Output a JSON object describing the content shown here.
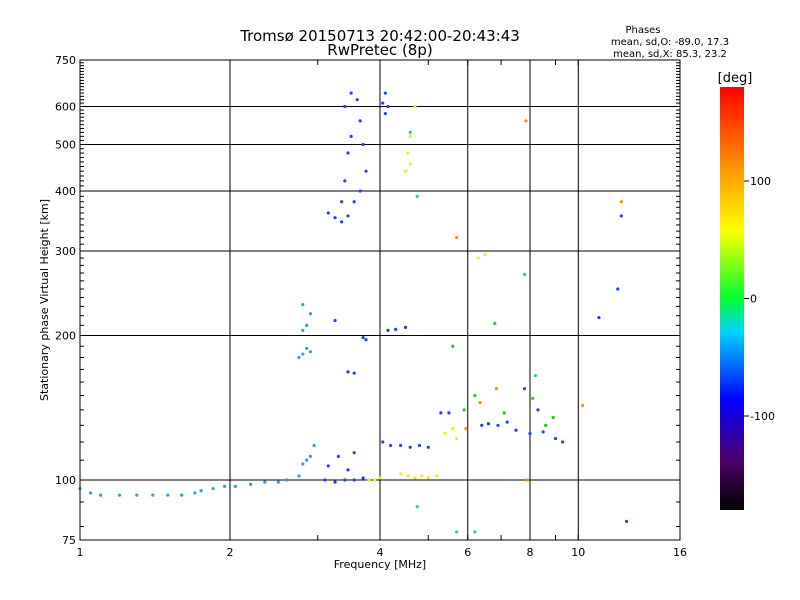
{
  "chart_data": {
    "type": "scatter",
    "title": "Tromsø 20150713 20:42:00-20:43:43",
    "subtitle": "RwPretec (8p)",
    "legend": {
      "title": "Phases",
      "lines": [
        "mean, sd,O: -89.0, 17.3",
        "mean, sd,X: 85.3, 23.2"
      ],
      "placement": "top-right"
    },
    "xlabel": "Frequency [MHz]",
    "ylabel": "Stationary phase Virtual Height [km]",
    "x_scale": "log",
    "y_scale": "log",
    "xlim": [
      1,
      16
    ],
    "ylim": [
      75,
      750
    ],
    "x_ticks": [
      1,
      2,
      4,
      6,
      8,
      10,
      16
    ],
    "y_ticks": [
      75,
      100,
      200,
      300,
      400,
      500,
      600,
      750
    ],
    "grid": true,
    "colorbar": {
      "label": "[deg]",
      "range": [
        -180,
        180
      ],
      "ticks": [
        100,
        0,
        -100
      ]
    },
    "series": [
      {
        "color": "#2aa0dc",
        "points": [
          [
            1.0,
            96
          ],
          [
            1.05,
            94
          ],
          [
            1.1,
            93
          ],
          [
            1.2,
            93
          ],
          [
            1.3,
            93
          ],
          [
            1.4,
            93
          ],
          [
            1.5,
            93
          ],
          [
            1.6,
            93
          ],
          [
            1.7,
            94
          ],
          [
            1.75,
            95
          ],
          [
            1.85,
            96
          ],
          [
            1.95,
            97
          ],
          [
            2.05,
            97
          ],
          [
            2.2,
            98
          ],
          [
            2.35,
            99
          ],
          [
            2.5,
            99
          ],
          [
            2.6,
            100
          ],
          [
            2.75,
            102
          ],
          [
            2.8,
            108
          ],
          [
            2.85,
            110
          ],
          [
            2.9,
            112
          ],
          [
            2.95,
            118
          ],
          [
            2.8,
            183
          ],
          [
            2.85,
            188
          ],
          [
            2.9,
            185
          ],
          [
            2.75,
            180
          ],
          [
            2.8,
            205
          ],
          [
            2.85,
            210
          ],
          [
            2.8,
            232
          ],
          [
            2.9,
            222
          ]
        ]
      },
      {
        "color": "#1e46e6",
        "points": [
          [
            3.1,
            100
          ],
          [
            3.25,
            99
          ],
          [
            3.4,
            100
          ],
          [
            3.55,
            100
          ],
          [
            3.7,
            101
          ],
          [
            3.15,
            107
          ],
          [
            3.3,
            112
          ],
          [
            3.45,
            105
          ],
          [
            3.55,
            114
          ],
          [
            3.35,
            380
          ],
          [
            3.4,
            420
          ],
          [
            3.45,
            480
          ],
          [
            3.5,
            520
          ],
          [
            3.4,
            600
          ],
          [
            3.5,
            640
          ],
          [
            3.6,
            620
          ],
          [
            3.65,
            560
          ],
          [
            3.7,
            500
          ],
          [
            3.75,
            440
          ],
          [
            3.65,
            400
          ],
          [
            3.55,
            380
          ],
          [
            3.45,
            355
          ],
          [
            3.35,
            345
          ],
          [
            3.25,
            352
          ],
          [
            3.15,
            360
          ],
          [
            4.05,
            610
          ],
          [
            4.1,
            640
          ],
          [
            4.15,
            600
          ],
          [
            4.1,
            580
          ],
          [
            3.45,
            168
          ],
          [
            3.55,
            167
          ],
          [
            3.7,
            198
          ],
          [
            3.75,
            196
          ],
          [
            3.25,
            215
          ],
          [
            4.05,
            120
          ],
          [
            4.2,
            118
          ],
          [
            4.4,
            118
          ],
          [
            4.6,
            117
          ],
          [
            4.8,
            118
          ],
          [
            5.0,
            117
          ],
          [
            4.15,
            205
          ],
          [
            4.3,
            206
          ],
          [
            4.5,
            208
          ],
          [
            5.3,
            138
          ],
          [
            5.5,
            138
          ],
          [
            6.4,
            130
          ],
          [
            6.6,
            131
          ],
          [
            6.9,
            130
          ],
          [
            7.2,
            132
          ],
          [
            7.5,
            127
          ],
          [
            8.0,
            125
          ],
          [
            8.5,
            126
          ],
          [
            9.0,
            122
          ],
          [
            9.3,
            120
          ],
          [
            7.8,
            155
          ],
          [
            8.3,
            140
          ],
          [
            11.0,
            218
          ],
          [
            12.0,
            250
          ],
          [
            12.2,
            355
          ],
          [
            12.5,
            82
          ]
        ]
      },
      {
        "color": "#f0f014",
        "points": [
          [
            3.8,
            100
          ],
          [
            3.9,
            100
          ],
          [
            4.0,
            101
          ],
          [
            4.4,
            103
          ],
          [
            4.55,
            102
          ],
          [
            4.7,
            101
          ],
          [
            4.85,
            102
          ],
          [
            5.0,
            101
          ],
          [
            5.2,
            102
          ],
          [
            5.4,
            125
          ],
          [
            5.6,
            128
          ],
          [
            5.7,
            122
          ],
          [
            4.5,
            440
          ],
          [
            4.6,
            455
          ],
          [
            4.55,
            480
          ],
          [
            4.6,
            520
          ],
          [
            6.3,
            290
          ],
          [
            6.5,
            295
          ],
          [
            4.7,
            600
          ]
        ]
      },
      {
        "color": "#1ec81e",
        "points": [
          [
            5.9,
            140
          ],
          [
            6.2,
            150
          ],
          [
            6.8,
            212
          ],
          [
            7.1,
            138
          ],
          [
            8.1,
            148
          ],
          [
            8.6,
            130
          ],
          [
            8.9,
            135
          ],
          [
            5.6,
            190
          ]
        ]
      },
      {
        "color": "#ff8c00",
        "points": [
          [
            5.7,
            320
          ],
          [
            5.95,
            128
          ],
          [
            6.35,
            145
          ],
          [
            6.85,
            155
          ],
          [
            7.85,
            560
          ],
          [
            7.9,
            100
          ],
          [
            10.2,
            143
          ],
          [
            12.2,
            380
          ]
        ]
      },
      {
        "color": "#20c8c8",
        "points": [
          [
            4.75,
            88
          ],
          [
            5.7,
            78
          ],
          [
            6.2,
            78
          ],
          [
            4.75,
            390
          ],
          [
            4.6,
            530
          ],
          [
            7.8,
            268
          ],
          [
            8.2,
            165
          ]
        ]
      }
    ]
  }
}
